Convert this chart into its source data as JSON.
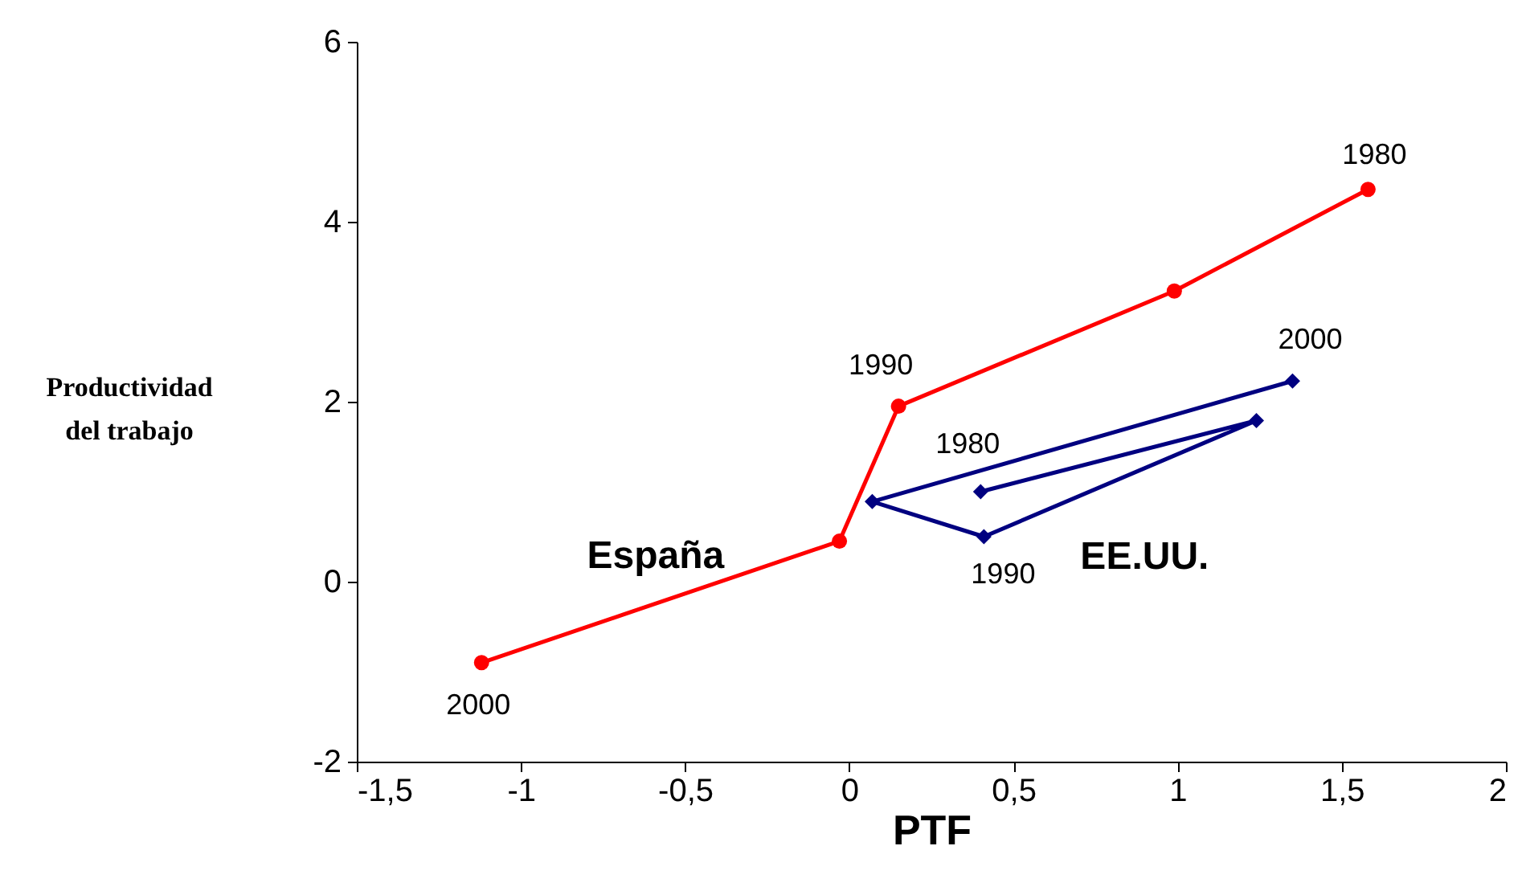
{
  "chart_data": {
    "type": "line",
    "xlabel": "PTF",
    "ylabel": "Productividad del trabajo",
    "xlim": [
      -1.5,
      2
    ],
    "xticks": [
      {
        "value": -1.5,
        "label": "-1,5"
      },
      -1,
      {
        "value": -0.5,
        "label": "-0,5"
      },
      0,
      {
        "value": 0.5,
        "label": "0,5"
      },
      1,
      {
        "value": 1.5,
        "label": "1,5"
      },
      2
    ],
    "ylim": [
      -2,
      6
    ],
    "yticks": [
      -2,
      0,
      2,
      4,
      6
    ],
    "grid": false,
    "series": [
      {
        "name": "España",
        "color": "#ff0000",
        "marker": "circle",
        "x": [
          1.58,
          0.99,
          0.15,
          -0.03,
          -1.12
        ],
        "values": [
          4.36,
          3.23,
          1.95,
          0.45,
          -0.9
        ]
      },
      {
        "name": "EE.UU.",
        "color": "#000080",
        "marker": "diamond",
        "x": [
          0.4,
          1.24,
          0.41,
          0.07,
          1.35
        ],
        "values": [
          1.0,
          1.79,
          0.5,
          0.89,
          2.23
        ]
      }
    ],
    "annotations": [
      {
        "text": "1980",
        "x": 1.58,
        "y": 4.36
      },
      {
        "text": "1990",
        "x": 0.15,
        "y": 1.95
      },
      {
        "text": "2000",
        "x": -1.12,
        "y": -0.9
      },
      {
        "text": "1980",
        "x": 0.4,
        "y": 1.0
      },
      {
        "text": "1990",
        "x": 0.41,
        "y": 0.5
      },
      {
        "text": "2000",
        "x": 1.35,
        "y": 2.23
      }
    ]
  }
}
